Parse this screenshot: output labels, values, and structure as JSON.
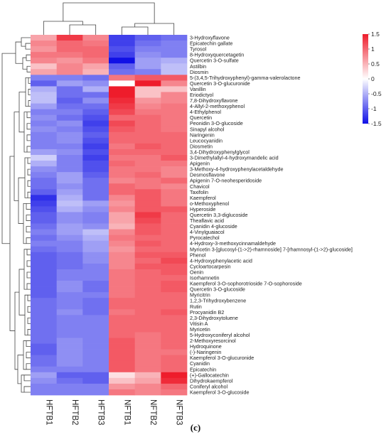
{
  "caption": "(c)",
  "chart_data": {
    "type": "heatmap",
    "columns": [
      "HFTB1",
      "HFTB2",
      "HFTB3",
      "NFTB1",
      "NFTB2",
      "NFTB3"
    ],
    "rows": [
      "3-Hydroxyflavone",
      "Epicatechin gallate",
      "Tyrosol",
      "8-Hydroxyquercetagetin",
      "Quercetin 3-O-sulfate",
      "Astilbin",
      "Diosmin",
      "5-(3,4,5-Trihydroxyphenyl)-gamma-valerolactone",
      "Quercetin 3-O-glucuronide",
      "Vanillin",
      "Eriodictyol",
      "7,8-Dihydroxyflavone",
      "4-Allyl-2-methoxyphenol",
      "4-Ethylphenol",
      "Quercetin",
      "Peonidin 3-O-glucoside",
      "Sinapyl alcohol",
      "Naringenin",
      "Leucocyanidin",
      "Diosmetin",
      "3,4-Dihydroxyphenylglycol",
      "3-Dimethylallyl-4-hydroxymandelic acid",
      "Apigenin",
      "3-Methoxy-4-hydroxyphenylacetaldehyde",
      "Desmosflavone",
      "Apigenin 7-O-neohesperidoside",
      "Chavicol",
      "Taxifolin",
      "Kaempferol",
      "o-Methoxyphenol",
      "Hyperoside",
      "Quercetin 3,3-diglucoside",
      "Theaflavic acid",
      "Cyanidin 4-glucoside",
      "4-Vinylguaiacol",
      "Pyrocatechol",
      "4-Hydroxy-3-methoxycinnamaldehyde",
      "Myricetin 3-[glucosyl-(1->2)-rhamnoside] 7-[rhamnosyl-(1->2)-glucoside]",
      "Phenol",
      "4-Hydroxyphenylacetic acid",
      "Cycloartocarpesin",
      "Oenin",
      "Isorhamnetin",
      "Kaempferol 3-O-sophorotrioside 7-O-sophoroside",
      "Quercetin 3-O-glucoside",
      "Myricitrin",
      "1,2,3-Trihydroxybenzene",
      "Rutin",
      "Procyanidin B2",
      "2,3-Dihydroxytoluene",
      "Vitisin A",
      "Myricetin",
      "5-Hydroxyconiferyl alcohol",
      "2-Methoxyresorcinol",
      "Hydroquinone",
      "(-)-Naringenin",
      "Kaempferol 3-O-glucuronide",
      "Cyanidin",
      "Epicatechin",
      "(+)-Gallocatechin",
      "Dihydrokaempferol",
      "Coniferyl alcohol",
      "Kaempferol 3-O-glucoside"
    ],
    "values": [
      [
        0.6,
        1.3,
        0.8,
        -1.2,
        -1.0,
        -0.9
      ],
      [
        0.8,
        1.0,
        0.9,
        -1.2,
        -0.9,
        -0.8
      ],
      [
        0.7,
        1.0,
        1.0,
        -1.1,
        -0.8,
        -0.8
      ],
      [
        0.9,
        0.9,
        1.0,
        -1.2,
        -0.7,
        -0.8
      ],
      [
        0.8,
        0.7,
        0.9,
        -1.5,
        -0.6,
        -0.5
      ],
      [
        0.4,
        0.8,
        0.6,
        -1.0,
        -0.6,
        -0.4
      ],
      [
        0.6,
        0.8,
        0.5,
        -0.9,
        -0.8,
        -0.4
      ],
      [
        -0.8,
        -0.8,
        -0.9,
        0.9,
        1.1,
        1.1
      ],
      [
        -1.0,
        -0.6,
        -0.7,
        0.0,
        1.5,
        0.8
      ],
      [
        -0.5,
        -0.9,
        -0.5,
        1.7,
        0.4,
        0.4
      ],
      [
        -0.4,
        -0.9,
        -0.9,
        1.5,
        0.4,
        0.8
      ],
      [
        -0.4,
        -1.0,
        -0.7,
        1.4,
        0.7,
        0.8
      ],
      [
        -0.6,
        -0.9,
        -0.9,
        1.3,
        0.8,
        0.9
      ],
      [
        -0.8,
        -0.8,
        -1.0,
        1.2,
        0.9,
        0.9
      ],
      [
        -0.7,
        -0.9,
        -1.1,
        1.0,
        1.0,
        0.9
      ],
      [
        -0.8,
        -0.7,
        -1.2,
        1.2,
        1.0,
        0.9
      ],
      [
        -0.7,
        -0.8,
        -1.1,
        1.1,
        1.0,
        0.9
      ],
      [
        -0.8,
        -0.7,
        -1.0,
        1.0,
        1.0,
        1.0
      ],
      [
        -0.8,
        -0.7,
        -1.1,
        1.0,
        1.0,
        1.0
      ],
      [
        -0.8,
        -0.8,
        -1.2,
        0.9,
        1.1,
        1.0
      ],
      [
        -0.6,
        -0.7,
        -1.1,
        1.0,
        1.0,
        1.0
      ],
      [
        -0.3,
        -0.8,
        -1.2,
        0.9,
        0.9,
        1.1
      ],
      [
        -0.5,
        -0.8,
        -1.1,
        1.0,
        0.9,
        0.9
      ],
      [
        -0.7,
        -0.8,
        -1.1,
        0.9,
        0.9,
        0.8
      ],
      [
        -0.8,
        -0.6,
        -1.0,
        0.9,
        1.0,
        0.8
      ],
      [
        -0.9,
        -0.6,
        -0.9,
        0.8,
        0.9,
        1.0
      ],
      [
        -0.9,
        -0.7,
        -0.9,
        1.0,
        0.9,
        0.8
      ],
      [
        -1.0,
        -0.6,
        -0.9,
        1.0,
        1.1,
        0.9
      ],
      [
        -1.3,
        -0.5,
        -0.9,
        0.8,
        1.1,
        0.9
      ],
      [
        -1.2,
        -0.4,
        -0.6,
        0.7,
        1.1,
        0.9
      ],
      [
        -1.1,
        -0.5,
        -0.7,
        0.8,
        1.1,
        1.1
      ],
      [
        -1.0,
        -0.7,
        -0.8,
        0.6,
        1.3,
        1.0
      ],
      [
        -1.0,
        -0.7,
        -0.8,
        0.6,
        1.2,
        1.0
      ],
      [
        -0.9,
        -0.6,
        -0.7,
        0.5,
        1.1,
        1.0
      ],
      [
        -0.8,
        -0.6,
        -0.4,
        0.8,
        1.1,
        1.0
      ],
      [
        -0.9,
        -0.7,
        -0.5,
        0.9,
        1.0,
        1.0
      ],
      [
        -0.8,
        -0.8,
        -0.6,
        0.8,
        1.1,
        1.0
      ],
      [
        -0.9,
        -0.8,
        -0.6,
        0.7,
        1.0,
        1.0
      ],
      [
        -1.0,
        -0.9,
        -0.7,
        0.8,
        1.1,
        1.1
      ],
      [
        -1.0,
        -0.9,
        -0.7,
        0.8,
        1.0,
        1.2
      ],
      [
        -1.0,
        -0.9,
        -0.8,
        0.8,
        1.1,
        1.1
      ],
      [
        -1.0,
        -0.8,
        -0.8,
        0.9,
        1.0,
        1.1
      ],
      [
        -1.0,
        -0.8,
        -0.8,
        0.9,
        1.0,
        1.0
      ],
      [
        -1.0,
        -0.7,
        -0.9,
        0.9,
        1.0,
        1.1
      ],
      [
        -1.0,
        -0.7,
        -0.9,
        0.9,
        1.0,
        1.1
      ],
      [
        -1.0,
        -0.8,
        -0.8,
        0.9,
        1.0,
        1.0
      ],
      [
        -0.9,
        -0.8,
        -0.9,
        1.0,
        1.0,
        1.0
      ],
      [
        -0.9,
        -0.8,
        -0.9,
        1.0,
        1.0,
        1.0
      ],
      [
        -0.9,
        -0.7,
        -0.9,
        0.9,
        1.0,
        1.1
      ],
      [
        -0.9,
        -0.8,
        -0.8,
        1.0,
        1.0,
        1.0
      ],
      [
        -0.9,
        -0.8,
        -0.8,
        1.0,
        1.0,
        1.0
      ],
      [
        -0.9,
        -0.8,
        -0.8,
        1.0,
        1.0,
        1.0
      ],
      [
        -0.9,
        -0.8,
        -0.8,
        1.0,
        0.9,
        1.0
      ],
      [
        -0.9,
        -0.7,
        -0.8,
        1.1,
        0.9,
        1.0
      ],
      [
        -1.0,
        -0.7,
        -0.8,
        1.1,
        0.9,
        1.0
      ],
      [
        -1.0,
        -0.7,
        -0.8,
        1.1,
        0.9,
        0.9
      ],
      [
        -0.9,
        -0.7,
        -0.8,
        1.1,
        0.9,
        1.0
      ],
      [
        -0.9,
        -0.7,
        -0.8,
        1.1,
        0.9,
        1.0
      ],
      [
        -0.8,
        -0.8,
        -0.8,
        1.1,
        0.9,
        1.0
      ],
      [
        -0.6,
        -1.0,
        -1.0,
        0.2,
        0.5,
        1.5
      ],
      [
        -0.7,
        -0.9,
        -1.0,
        0.4,
        0.6,
        1.4
      ],
      [
        -0.8,
        -0.8,
        -0.8,
        0.7,
        0.8,
        1.0
      ],
      [
        -0.8,
        -0.8,
        -0.8,
        0.9,
        0.8,
        0.9
      ]
    ],
    "color_scale": {
      "min": -1.5,
      "max": 1.5,
      "stops": [
        "#1010e6",
        "#ffffff",
        "#ee1c2b"
      ],
      "ticks": [
        1.5,
        1,
        0.5,
        0,
        -0.5,
        -1,
        -1.5
      ]
    },
    "legend_position": "top-right",
    "row_dendrogram": "left",
    "column_dendrogram": "top"
  }
}
